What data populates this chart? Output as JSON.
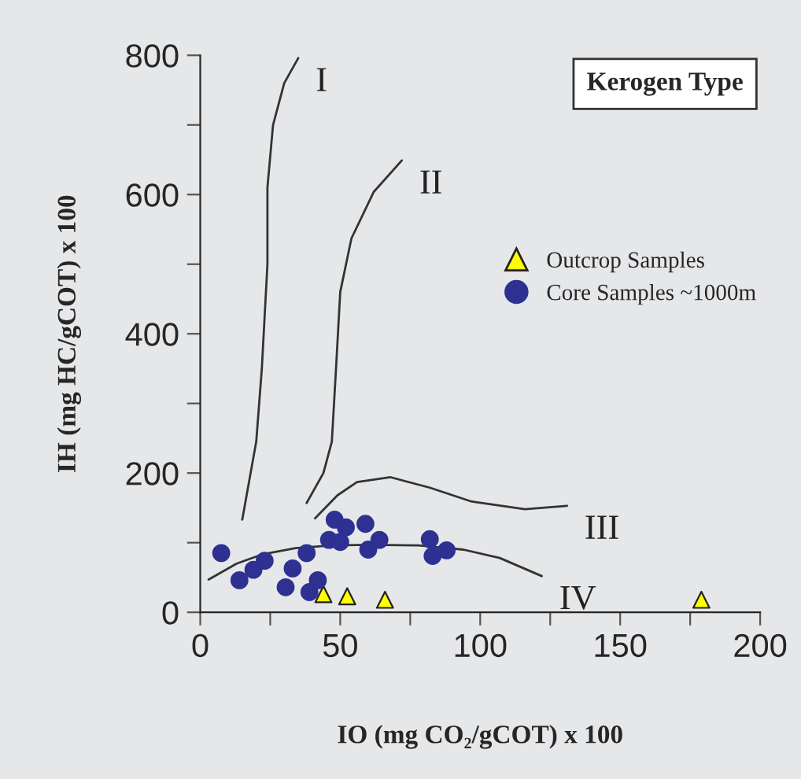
{
  "chart_data": {
    "type": "scatter",
    "xlabel": "IO (mg CO₂/gCOT) x 100",
    "ylabel": "IH (mg HC/gCOT) x 100",
    "xlim": [
      0,
      200
    ],
    "ylim": [
      0,
      800
    ],
    "xticks": [
      0,
      {
        "value": 25,
        "label": null
      },
      50,
      {
        "value": 75,
        "label": null
      },
      100,
      {
        "value": 125,
        "label": null
      },
      150,
      {
        "value": 175,
        "label": null
      },
      200
    ],
    "yticks": [
      0,
      {
        "value": 100,
        "label": null
      },
      200,
      {
        "value": 300,
        "label": null
      },
      400,
      {
        "value": 500,
        "label": null
      },
      600,
      {
        "value": 700,
        "label": null
      },
      800
    ],
    "grid": false,
    "legend": "right",
    "annotations": [
      "Kerogen Type"
    ],
    "series": [
      {
        "name": "I",
        "type": "line",
        "color": "#333333",
        "marker": "none",
        "x": [
          15,
          20,
          22,
          24,
          24,
          26,
          30,
          35
        ],
        "values": [
          133,
          245,
          350,
          500,
          610,
          700,
          760,
          796
        ]
      },
      {
        "name": "II",
        "type": "line",
        "color": "#333333",
        "marker": "none",
        "x": [
          38,
          44,
          47,
          48.5,
          50,
          54,
          62,
          72
        ],
        "values": [
          157,
          200,
          245,
          350,
          460,
          537,
          604,
          649
        ]
      },
      {
        "name": "III",
        "type": "line",
        "color": "#333333",
        "marker": "none",
        "x": [
          41,
          49,
          56,
          68,
          82,
          97,
          116,
          131
        ],
        "values": [
          135,
          168,
          187,
          194,
          179,
          159,
          148,
          153
        ]
      },
      {
        "name": "IV",
        "type": "line",
        "color": "#333333",
        "marker": "none",
        "x": [
          3,
          13,
          22,
          34,
          47,
          60,
          78,
          94,
          107,
          122
        ],
        "values": [
          47,
          70,
          83,
          92,
          96,
          97,
          96,
          90,
          78,
          52
        ]
      },
      {
        "name": "Outcrop Samples",
        "color": "#ffff00",
        "marker": "triangle",
        "x": [
          44,
          52.5,
          66,
          179
        ],
        "values": [
          26,
          23,
          18,
          18
        ]
      },
      {
        "name": "Core Samples ~1000m",
        "color": "#2e3192",
        "marker": "circle",
        "x": [
          7.5,
          14,
          19,
          23,
          30.5,
          33,
          38,
          39,
          42,
          46,
          48,
          50,
          52,
          59,
          60,
          64,
          82,
          83,
          88
        ],
        "values": [
          85,
          46,
          61,
          74,
          36,
          63,
          85,
          29,
          46,
          104,
          133,
          101,
          122,
          127,
          90,
          104,
          105,
          81,
          89
        ]
      }
    ]
  }
}
